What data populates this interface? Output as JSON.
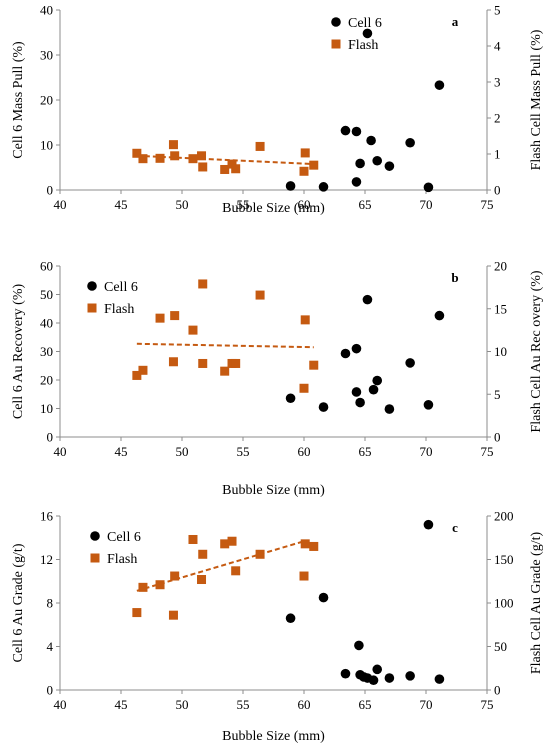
{
  "colors": {
    "cell6": "#000000",
    "flash": "#C55A11",
    "axis": "#8c8c8c"
  },
  "chart_data": [
    {
      "type": "scatter",
      "panel": "a",
      "xlabel": "Bubble Size (mm)",
      "ylabel": "Cell 6 Mass Pull (%)",
      "y2label": "Flash Cell Mass Pull (%)",
      "xlim": [
        40,
        75
      ],
      "ylim": [
        0,
        40
      ],
      "y2lim": [
        0,
        5
      ],
      "xticks": [
        40,
        45,
        50,
        55,
        60,
        65,
        70,
        75
      ],
      "yticks": [
        0,
        10,
        20,
        30,
        40
      ],
      "y2ticks": [
        0,
        1,
        2,
        3,
        4,
        5
      ],
      "legend": "top-left",
      "series": [
        {
          "name": "Cell 6",
          "axis": "left",
          "marker": "circle",
          "x": [
            65.2,
            71.1,
            63.4,
            64.3,
            65.5,
            68.7,
            66.0,
            64.6,
            67.0,
            64.3,
            58.9,
            61.6,
            70.2
          ],
          "y": [
            34.8,
            23.3,
            13.2,
            13.0,
            11.0,
            10.5,
            6.5,
            5.9,
            5.3,
            1.8,
            0.9,
            0.7,
            0.6
          ]
        },
        {
          "name": "Flash",
          "axis": "right",
          "marker": "square",
          "x": [
            46.3,
            46.8,
            48.2,
            49.3,
            49.4,
            50.9,
            51.6,
            51.7,
            53.5,
            54.1,
            54.4,
            56.4,
            60.0,
            60.1,
            60.8
          ],
          "y": [
            1.02,
            0.87,
            0.88,
            1.26,
            0.95,
            0.87,
            0.95,
            0.64,
            0.57,
            0.72,
            0.59,
            1.21,
            0.52,
            1.03,
            0.69
          ]
        }
      ],
      "trendline": {
        "series": "Flash",
        "x": [
          46.3,
          60.8
        ],
        "y": [
          0.95,
          0.72
        ]
      }
    },
    {
      "type": "scatter",
      "panel": "b",
      "xlabel": "Bubble Size (mm)",
      "ylabel": "Cell 6 Au Recovery (%)",
      "y2label": "Flash Cell Au Rec overy (%)",
      "xlim": [
        40,
        75
      ],
      "ylim": [
        0,
        60
      ],
      "y2lim": [
        0,
        20
      ],
      "xticks": [
        40,
        45,
        50,
        55,
        60,
        65,
        70,
        75
      ],
      "yticks": [
        0,
        10,
        20,
        30,
        40,
        50,
        60
      ],
      "y2ticks": [
        0,
        5,
        10,
        15,
        20
      ],
      "legend": "top-left",
      "series": [
        {
          "name": "Cell 6",
          "axis": "left",
          "marker": "circle",
          "x": [
            65.2,
            71.1,
            64.3,
            63.4,
            68.7,
            66.0,
            65.7,
            64.3,
            64.6,
            58.9,
            61.6,
            67.0,
            70.2
          ],
          "y": [
            48.2,
            42.6,
            31.0,
            29.3,
            26.0,
            19.8,
            16.6,
            15.8,
            12.1,
            13.6,
            10.5,
            9.8,
            11.3
          ]
        },
        {
          "name": "Flash",
          "axis": "right",
          "marker": "square",
          "x": [
            51.7,
            56.4,
            49.4,
            48.2,
            60.1,
            50.9,
            49.3,
            51.7,
            54.1,
            54.4,
            60.8,
            46.8,
            53.5,
            46.3,
            60.0
          ],
          "y": [
            17.9,
            16.6,
            14.2,
            13.9,
            13.7,
            12.5,
            8.8,
            8.6,
            8.6,
            8.6,
            8.4,
            7.8,
            7.7,
            7.2,
            5.7
          ]
        }
      ],
      "trendline": {
        "series": "Flash",
        "x": [
          46.3,
          60.8
        ],
        "y": [
          10.9,
          10.5
        ]
      }
    },
    {
      "type": "scatter",
      "panel": "c",
      "xlabel": "Bubble Size (mm)",
      "ylabel": "Cell 6 Au Grade (g/t)",
      "y2label": "Flash Cell Au Grade (g/t)",
      "xlim": [
        40,
        75
      ],
      "ylim": [
        0,
        16
      ],
      "y2lim": [
        0,
        200
      ],
      "xticks": [
        40,
        45,
        50,
        55,
        60,
        65,
        70,
        75
      ],
      "yticks": [
        0,
        4,
        8,
        12,
        16
      ],
      "y2ticks": [
        0,
        50,
        100,
        150,
        200
      ],
      "legend": "top-left",
      "series": [
        {
          "name": "Cell 6",
          "axis": "left",
          "marker": "circle",
          "x": [
            70.2,
            61.6,
            58.9,
            64.5,
            66.0,
            63.4,
            64.6,
            65.2,
            68.7,
            64.9,
            65.7,
            67.0,
            71.1
          ],
          "y": [
            15.2,
            8.5,
            6.6,
            4.1,
            1.9,
            1.5,
            1.4,
            1.1,
            1.3,
            1.2,
            0.9,
            1.1,
            1.0
          ]
        },
        {
          "name": "Flash",
          "axis": "right",
          "marker": "square",
          "x": [
            46.3,
            46.8,
            48.2,
            49.3,
            49.4,
            50.9,
            51.6,
            51.7,
            53.5,
            54.1,
            54.4,
            56.4,
            60.0,
            60.1,
            60.8
          ],
          "y": [
            89,
            118,
            121,
            86,
            131,
            173,
            127,
            156,
            168,
            171,
            137,
            156,
            131,
            168,
            165
          ]
        }
      ],
      "trendline": {
        "series": "Flash",
        "x": [
          46.3,
          60.0
        ],
        "y": [
          114,
          171
        ]
      }
    }
  ]
}
